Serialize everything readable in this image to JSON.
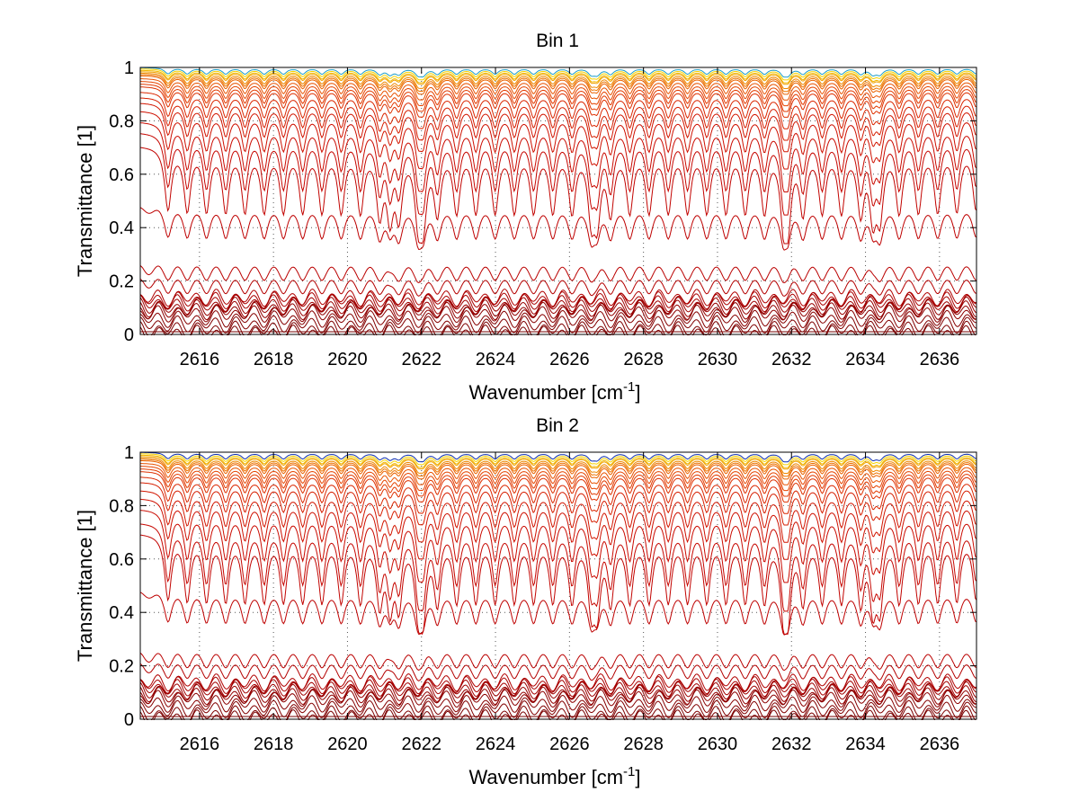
{
  "chart_data": [
    {
      "type": "line",
      "title": "Bin 1",
      "xlabel": "Wavenumber [cm",
      "xlabel_sup": "-1",
      "xlabel_close": "]",
      "ylabel": "Transmittance [1]",
      "xlim": [
        2614.4,
        2637.0
      ],
      "ylim": [
        0,
        1
      ],
      "xticks": [
        2616,
        2618,
        2620,
        2622,
        2624,
        2626,
        2628,
        2630,
        2632,
        2634,
        2636
      ],
      "xtick_labels": [
        "2616",
        "2618",
        "2620",
        "2622",
        "2624",
        "2626",
        "2628",
        "2630",
        "2632",
        "2634",
        "2636"
      ],
      "yticks": [
        0,
        0.2,
        0.4,
        0.6,
        0.8,
        1
      ],
      "ytick_labels": [
        "0",
        "0.2",
        "0.4",
        "0.6",
        "0.8",
        "1"
      ],
      "grid": "dotted",
      "series_baselines": [
        1.0,
        0.995,
        0.99,
        0.985,
        0.98,
        0.975,
        0.97,
        0.96,
        0.95,
        0.94,
        0.93,
        0.91,
        0.89,
        0.87,
        0.84,
        0.8,
        0.76,
        0.71,
        0.48,
        0.26,
        0.21,
        0.16,
        0.15,
        0.14,
        0.13,
        0.12,
        0.11,
        0.1,
        0.08,
        0.06,
        0.04,
        0.025,
        0.01,
        0.0
      ],
      "series_colors": [
        "#1f9ec9",
        "#f5d200",
        "#f2b800",
        "#f0a000",
        "#ee8800",
        "#ec7400",
        "#ea6200",
        "#e85200",
        "#e64400",
        "#e23a00",
        "#de3000",
        "#da2600",
        "#d61e00",
        "#d21600",
        "#ce1000",
        "#ca0a00",
        "#c60600",
        "#c20300",
        "#be0000",
        "#ba0000",
        "#b40000",
        "#b00000",
        "#aa0000",
        "#a40000",
        "#9e0000",
        "#980000",
        "#920000",
        "#8c0000",
        "#860000",
        "#820000",
        "#7e0000",
        "#7a0000",
        "#760000",
        "#720000"
      ]
    },
    {
      "type": "line",
      "title": "Bin 2",
      "xlabel": "Wavenumber [cm",
      "xlabel_sup": "-1",
      "xlabel_close": "]",
      "ylabel": "Transmittance [1]",
      "xlim": [
        2614.4,
        2637.0
      ],
      "ylim": [
        0,
        1
      ],
      "xticks": [
        2616,
        2618,
        2620,
        2622,
        2624,
        2626,
        2628,
        2630,
        2632,
        2634,
        2636
      ],
      "xtick_labels": [
        "2616",
        "2618",
        "2620",
        "2622",
        "2624",
        "2626",
        "2628",
        "2630",
        "2632",
        "2634",
        "2636"
      ],
      "yticks": [
        0,
        0.2,
        0.4,
        0.6,
        0.8,
        1
      ],
      "ytick_labels": [
        "0",
        "0.2",
        "0.4",
        "0.6",
        "0.8",
        "1"
      ],
      "grid": "dotted",
      "series_baselines": [
        1.0,
        0.995,
        0.99,
        0.985,
        0.98,
        0.975,
        0.97,
        0.96,
        0.95,
        0.94,
        0.93,
        0.91,
        0.89,
        0.86,
        0.83,
        0.79,
        0.74,
        0.7,
        0.48,
        0.25,
        0.21,
        0.16,
        0.15,
        0.14,
        0.13,
        0.12,
        0.11,
        0.1,
        0.08,
        0.06,
        0.04,
        0.025,
        0.01,
        0.0
      ],
      "series_colors": [
        "#1030b0",
        "#f5d200",
        "#f2b800",
        "#f0a000",
        "#ee8800",
        "#ec7400",
        "#ea6200",
        "#e85200",
        "#e64400",
        "#e23a00",
        "#de3000",
        "#da2600",
        "#d61e00",
        "#d21600",
        "#ce1000",
        "#ca0a00",
        "#c60600",
        "#c20300",
        "#be0000",
        "#ba0000",
        "#b40000",
        "#b00000",
        "#aa0000",
        "#a40000",
        "#9e0000",
        "#980000",
        "#920000",
        "#8c0000",
        "#860000",
        "#820000",
        "#7e0000",
        "#7a0000",
        "#760000",
        "#720000"
      ]
    }
  ]
}
